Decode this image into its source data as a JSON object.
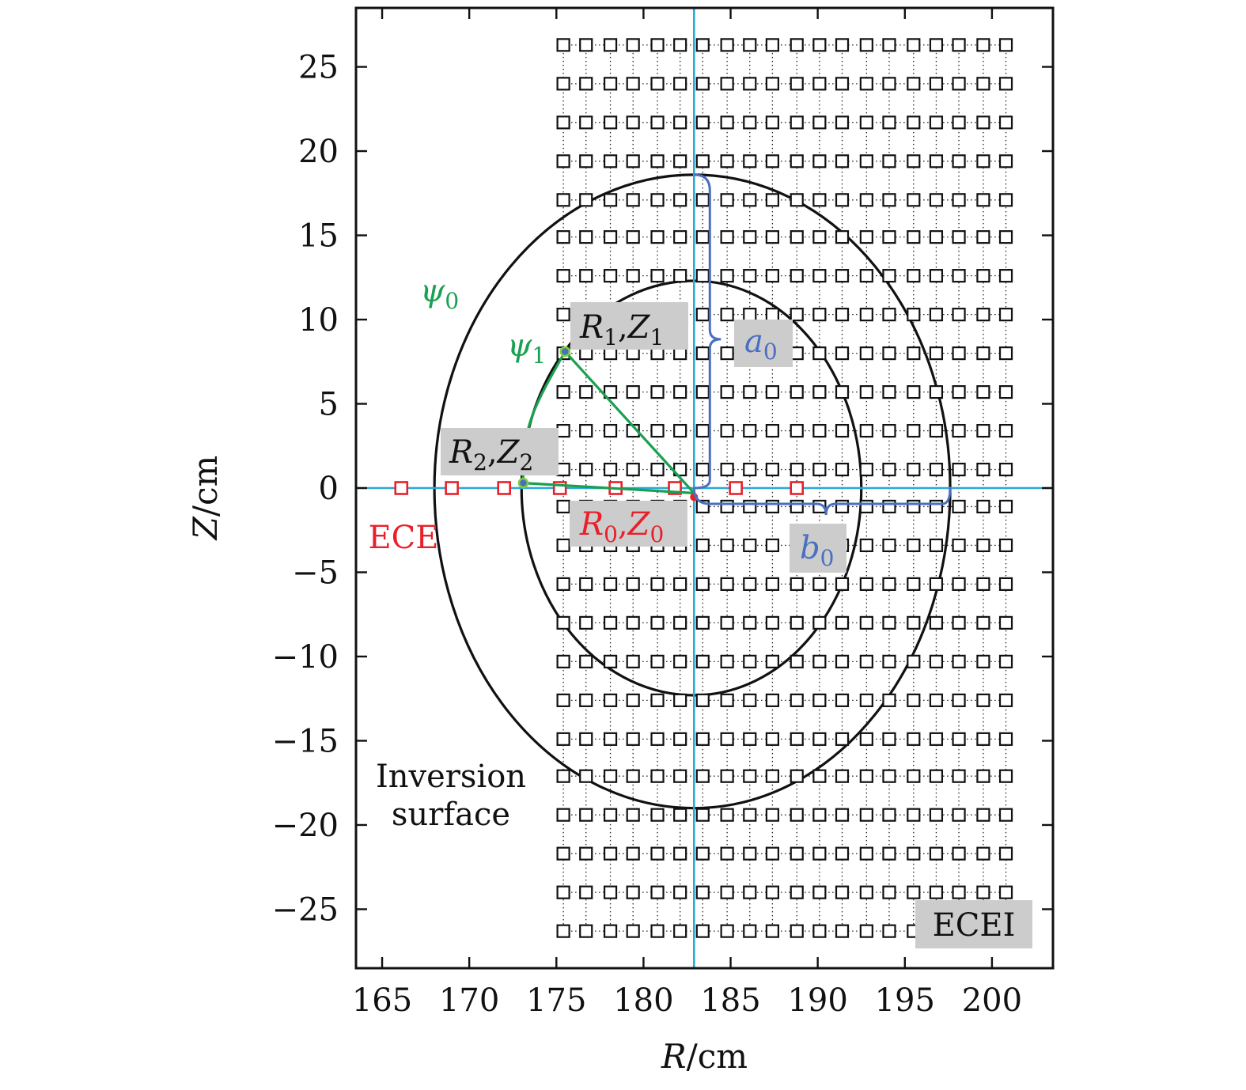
{
  "chart_data": {
    "type": "scatter",
    "title": "",
    "xlabel": "R/cm",
    "ylabel": "Z/cm",
    "xlim": [
      163.5,
      203.5
    ],
    "ylim": [
      -28.5,
      28.5
    ],
    "xticks": [
      165,
      170,
      175,
      180,
      185,
      190,
      195,
      200
    ],
    "yticks": [
      25,
      20,
      15,
      10,
      5,
      0,
      -5,
      -10,
      -15,
      -20,
      -25
    ],
    "ecei": {
      "label": "ECEI",
      "r": [
        175.4,
        176.7,
        178.1,
        179.4,
        180.8,
        182.1,
        183.4,
        184.8,
        186.1,
        187.4,
        188.8,
        190.1,
        191.4,
        192.8,
        194.1,
        195.5,
        196.8,
        198.1,
        199.5,
        200.8
      ],
      "z": [
        26.3,
        24.0,
        21.7,
        19.4,
        17.1,
        14.9,
        12.6,
        10.3,
        8.0,
        5.7,
        3.4,
        1.1,
        -1.1,
        -3.4,
        -5.7,
        -8.0,
        -10.3,
        -12.6,
        -14.9,
        -17.1,
        -19.4,
        -21.7,
        -24.0,
        -26.3
      ],
      "color": "#111111"
    },
    "ece": {
      "label": "ECE",
      "r": [
        166.1,
        169.0,
        172.0,
        175.2,
        178.4,
        181.8,
        185.3,
        188.8
      ],
      "z": [
        0,
        0,
        0,
        0,
        0,
        0,
        0,
        0
      ],
      "color": "#e8202a"
    },
    "surfaces": [
      {
        "name": "ψ0",
        "r_min": 168.0,
        "r_max": 197.6,
        "z_min": -19.0,
        "z_max": 18.6,
        "r_center": 182.9
      },
      {
        "name": "ψ1",
        "r_min": 173.0,
        "r_max": 192.5,
        "z_min": -12.3,
        "z_max": 12.3,
        "r_center": 182.9
      }
    ],
    "axis_lines": {
      "r0": 182.9,
      "z0": 0,
      "color": "#2aa8d8"
    },
    "points": {
      "p0": {
        "label_r": "R",
        "label_sub_r": "0",
        "label_z": "Z",
        "label_sub_z": "0",
        "r": 182.9,
        "z": -0.3,
        "color": "#e8202a"
      },
      "p1": {
        "label_r": "R",
        "label_sub_r": "1",
        "label_z": "Z",
        "label_sub_z": "1",
        "r": 175.5,
        "z": 8.1
      },
      "p2": {
        "label_r": "R",
        "label_sub_r": "2",
        "label_z": "Z",
        "label_sub_z": "2",
        "r": 173.1,
        "z": 0.3
      }
    },
    "psi_labels": {
      "psi0": {
        "sym": "ψ",
        "sub": "0"
      },
      "psi1": {
        "sym": "ψ",
        "sub": "1"
      }
    },
    "half_axes": {
      "a0": {
        "sym": "a",
        "sub": "0",
        "z_top": 18.6
      },
      "b0": {
        "sym": "b",
        "sub": "0",
        "r_right": 197.6
      },
      "color": "#4a6fc0"
    },
    "annotations": {
      "inversion_line1": "Inversion",
      "inversion_line2": "surface"
    },
    "colors": {
      "green": "#1aa050",
      "box": "#cccccc"
    }
  }
}
